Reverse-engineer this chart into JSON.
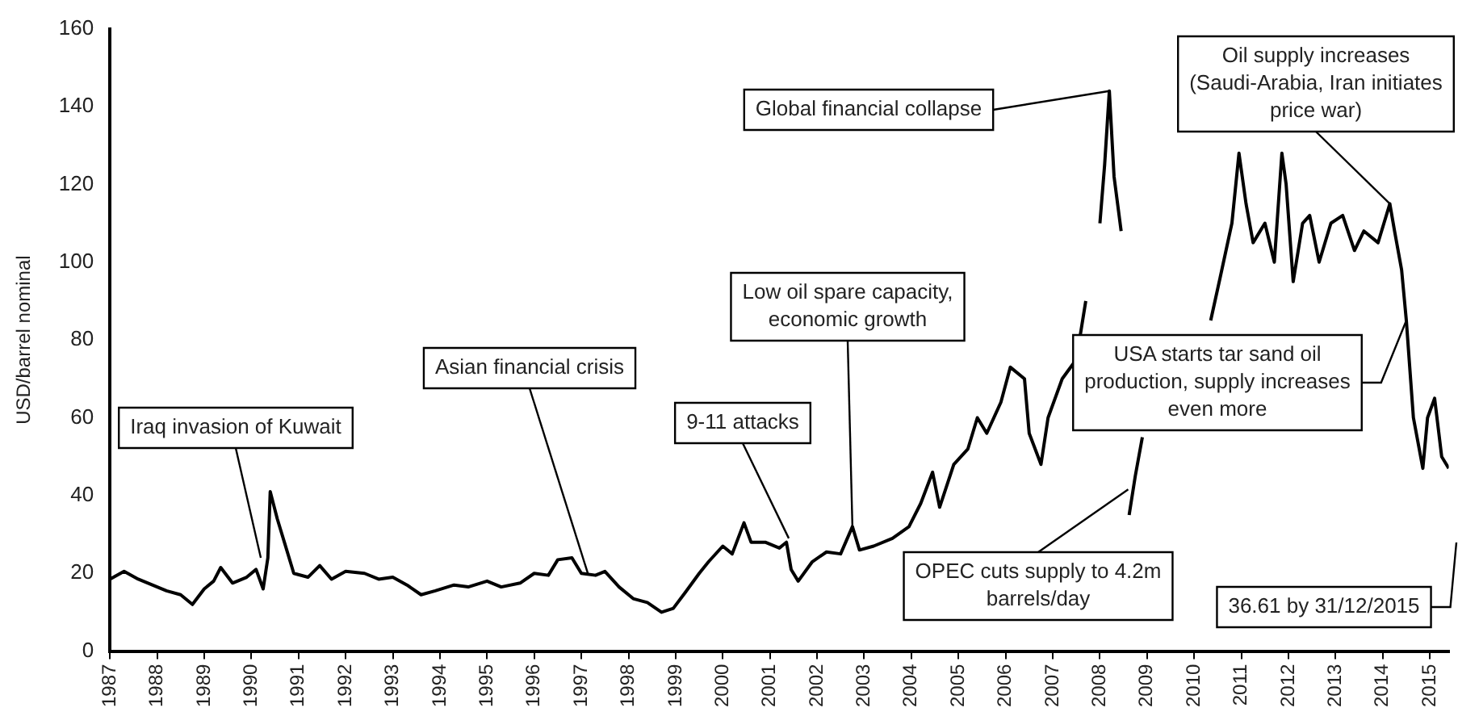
{
  "chart_data": {
    "type": "line",
    "ylabel": "USD/barrel nominal",
    "xlim": [
      1987,
      2015.4
    ],
    "xticks": [
      1987,
      1988,
      1989,
      1990,
      1991,
      1992,
      1993,
      1994,
      1995,
      1996,
      1997,
      1998,
      1999,
      2000,
      2001,
      2002,
      2003,
      2004,
      2005,
      2006,
      2007,
      2008,
      2009,
      2010,
      2011,
      2012,
      2013,
      2014,
      2015
    ],
    "ylim": [
      0,
      160
    ],
    "yticks": [
      0,
      20,
      40,
      60,
      80,
      100,
      120,
      140,
      160
    ],
    "grid": false,
    "legend": false,
    "marker": "none",
    "line_style": "solid",
    "series": [
      {
        "color": "#000000",
        "x": [
          1987.0,
          1987.3,
          1987.6,
          1987.9,
          1988.2,
          1988.5,
          1988.75,
          1989.0,
          1989.2,
          1989.35,
          1989.6,
          1989.9,
          1990.1,
          1990.25,
          1990.35,
          1990.4,
          1990.55,
          1990.7,
          1990.9,
          1991.2,
          1991.45,
          1991.7,
          1992.0,
          1992.4,
          1992.7,
          1993.0,
          1993.3,
          1993.6,
          1993.9,
          1994.3,
          1994.6,
          1995.0,
          1995.3,
          1995.7,
          1996.0,
          1996.3,
          1996.5,
          1996.8,
          1997.0,
          1997.3,
          1997.5,
          1997.8,
          1998.1,
          1998.4,
          1998.7,
          1998.95,
          1999.2,
          1999.5,
          1999.7,
          2000.0,
          2000.2,
          2000.45,
          2000.6,
          2000.9,
          2001.2,
          2001.35,
          2001.45,
          2001.6,
          2001.9,
          2002.2,
          2002.5,
          2002.75,
          2002.9,
          2003.2,
          2003.6,
          2003.95,
          2004.2,
          2004.45,
          2004.6,
          2004.9,
          2005.2,
          2005.4,
          2005.6,
          2005.9,
          2006.1,
          2006.4,
          2006.5,
          2006.75,
          2006.9,
          2007.2,
          2007.5,
          2007.7,
          2007.8,
          2008.0,
          2008.1,
          2008.2,
          2008.3,
          2008.45,
          2008.55,
          2008.62,
          2008.75,
          2008.9,
          2009.0,
          2009.2,
          2009.4,
          2009.6,
          2009.75,
          2009.85,
          2010.1,
          2010.35,
          2010.55,
          2010.8,
          2010.95,
          2011.1,
          2011.25,
          2011.5,
          2011.7,
          2011.86,
          2011.95,
          2012.1,
          2012.3,
          2012.45,
          2012.65,
          2012.9,
          2013.15,
          2013.4,
          2013.6,
          2013.9,
          2014.15,
          2014.25,
          2014.4,
          2014.5,
          2014.65,
          2014.85,
          2014.95,
          2015.1,
          2015.25,
          2015.4
        ],
        "values": [
          18.5,
          20.5,
          18.5,
          17,
          15.5,
          14.5,
          12,
          16,
          18,
          21.5,
          17.5,
          19,
          21,
          16,
          24,
          41,
          34,
          28,
          20,
          19,
          22,
          18.5,
          20.5,
          20,
          18.5,
          19,
          17,
          14.5,
          15.5,
          17,
          16.5,
          18,
          16.5,
          17.5,
          20,
          19.5,
          23.5,
          24,
          20,
          19.5,
          20.5,
          16.5,
          13.5,
          12.5,
          10,
          11,
          15,
          20,
          23,
          27,
          25,
          33,
          28,
          28,
          26.5,
          28,
          21,
          18,
          23,
          25.5,
          25,
          32,
          26,
          27,
          29,
          32,
          38,
          46,
          37,
          48,
          52,
          60,
          56,
          64,
          73,
          70,
          56,
          48,
          60,
          70,
          75,
          90,
          null,
          110,
          125,
          144,
          122,
          108,
          null,
          35,
          45,
          55,
          null,
          null,
          null,
          null,
          null,
          null,
          null,
          85,
          96,
          110,
          128,
          115,
          105,
          110,
          100,
          128,
          120,
          95,
          110,
          112,
          100,
          110,
          112,
          103,
          108,
          105,
          115,
          108,
          98,
          85,
          60,
          47,
          60,
          65,
          50,
          47
        ]
      }
    ],
    "annotations": [
      {
        "text": "Iraq invasion of Kuwait",
        "x": 1990.2,
        "y": 24
      },
      {
        "text": "Asian financial crisis",
        "x": 1997.15,
        "y": 19.5
      },
      {
        "text": "9-11 attacks",
        "x": 2001.4,
        "y": 29
      },
      {
        "text": "Low oil spare capacity, economic growth",
        "x": 2002.75,
        "y": 32
      },
      {
        "text": "Global financial collapse",
        "x": 2008.2,
        "y": 144
      },
      {
        "text": "OPEC cuts supply to 4.2m barrels/day",
        "x": 2008.6,
        "y": 41.6
      },
      {
        "text": "USA starts tar sand oil production, supply increases even more",
        "x": 2014.5,
        "y": 85
      },
      {
        "text": "Oil supply increases (Saudi-Arabia, Iran initiates price war)",
        "x": 2014.15,
        "y": 115
      },
      "36.61 by 31/12/2015"
    ]
  }
}
